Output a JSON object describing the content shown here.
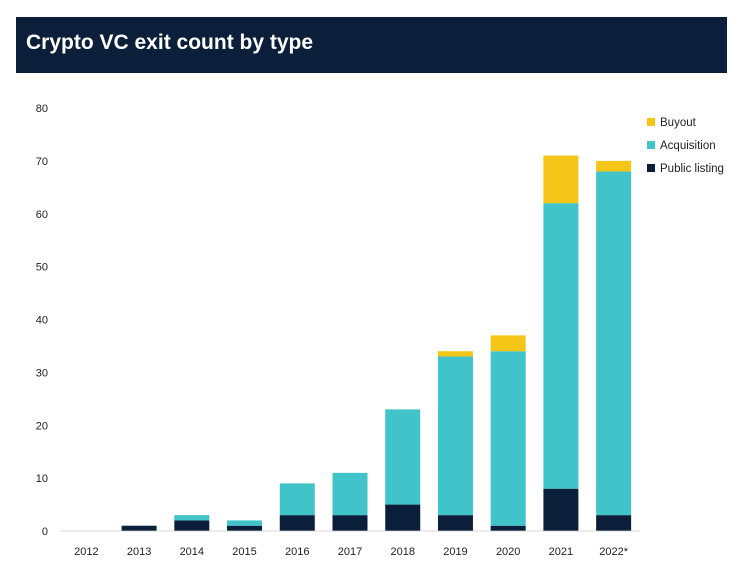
{
  "chart_data": {
    "type": "bar",
    "stacked": true,
    "title": "Crypto VC exit count by type",
    "xlabel": "",
    "ylabel": "",
    "ylim": [
      0,
      80
    ],
    "yticks": [
      0,
      10,
      20,
      30,
      40,
      50,
      60,
      70,
      80
    ],
    "grid": false,
    "legend_position": "top-right",
    "categories": [
      "2012",
      "2013",
      "2014",
      "2015",
      "2016",
      "2017",
      "2018",
      "2019",
      "2020",
      "2021",
      "2022*"
    ],
    "series": [
      {
        "name": "Public listing",
        "color": "#0b1f3a",
        "values": [
          0,
          1,
          2,
          1,
          3,
          3,
          5,
          3,
          1,
          8,
          3
        ]
      },
      {
        "name": "Acquisition",
        "color": "#40c4c9",
        "values": [
          0,
          0,
          1,
          1,
          6,
          8,
          18,
          30,
          33,
          54,
          65
        ]
      },
      {
        "name": "Buyout",
        "color": "#f5c518",
        "values": [
          0,
          0,
          0,
          0,
          0,
          0,
          0,
          1,
          3,
          9,
          2
        ]
      }
    ],
    "legend_order": [
      "Buyout",
      "Acquisition",
      "Public listing"
    ]
  }
}
